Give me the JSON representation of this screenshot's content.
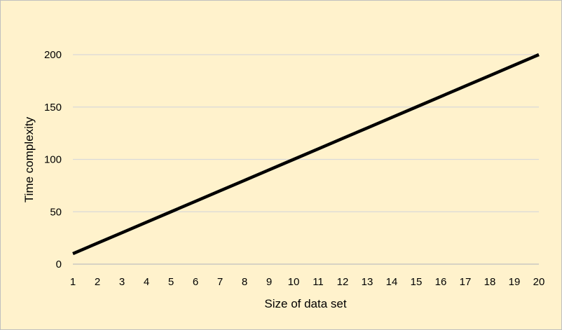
{
  "chart_data": {
    "type": "line",
    "title": "",
    "xlabel": "Size of data set",
    "ylabel": "Time complexity",
    "x": [
      1,
      2,
      3,
      4,
      5,
      6,
      7,
      8,
      9,
      10,
      11,
      12,
      13,
      14,
      15,
      16,
      17,
      18,
      19,
      20
    ],
    "series": [
      {
        "values": [
          10,
          20,
          30,
          40,
          50,
          60,
          70,
          80,
          90,
          100,
          110,
          120,
          130,
          140,
          150,
          160,
          170,
          180,
          190,
          200
        ]
      }
    ],
    "xlim": [
      1,
      20
    ],
    "ylim": [
      0,
      200
    ],
    "yticks": [
      0,
      50,
      100,
      150,
      200
    ],
    "grid": "horizontal",
    "legend": "none",
    "colors": {
      "background": "#fff2cc",
      "line": "#000000",
      "grid": "#d9d9d9",
      "axis": "#bfbfbf"
    }
  }
}
